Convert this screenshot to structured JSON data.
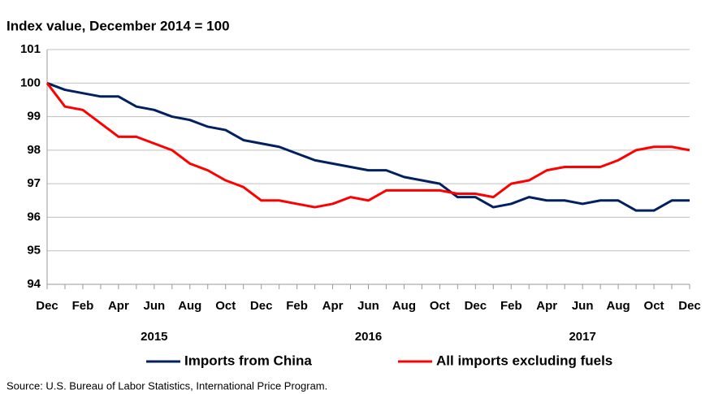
{
  "chart_data": {
    "type": "line",
    "title": "Index value, December 2014 = 100",
    "categories": [
      "Dec",
      null,
      "Feb",
      null,
      "Apr",
      null,
      "Jun",
      null,
      "Aug",
      null,
      "Oct",
      null,
      "Dec",
      null,
      "Feb",
      null,
      "Apr",
      null,
      "Jun",
      null,
      "Aug",
      null,
      "Oct",
      null,
      "Dec",
      null,
      "Feb",
      null,
      "Apr",
      null,
      "Jun",
      null,
      "Aug",
      null,
      "Oct",
      null,
      "Dec"
    ],
    "year_labels": [
      "2015",
      "2016",
      "2017"
    ],
    "series": [
      {
        "name": "Imports from China",
        "color": "#002060",
        "values": [
          100,
          99.8,
          99.7,
          99.6,
          99.6,
          99.3,
          99.2,
          99.0,
          98.9,
          98.7,
          98.6,
          98.3,
          98.2,
          98.1,
          97.9,
          97.7,
          97.6,
          97.5,
          97.4,
          97.4,
          97.2,
          97.1,
          97.0,
          96.6,
          96.6,
          96.3,
          96.4,
          96.6,
          96.5,
          96.5,
          96.4,
          96.5,
          96.5,
          96.2,
          96.2,
          96.5,
          96.5
        ]
      },
      {
        "name": "All imports excluding fuels",
        "color": "#ff0000",
        "values": [
          100,
          99.3,
          99.2,
          98.8,
          98.4,
          98.4,
          98.2,
          98.0,
          97.6,
          97.4,
          97.1,
          96.9,
          96.5,
          96.5,
          96.4,
          96.3,
          96.4,
          96.6,
          96.5,
          96.8,
          96.8,
          96.8,
          96.8,
          96.7,
          96.7,
          96.6,
          97.0,
          97.1,
          97.4,
          97.5,
          97.5,
          97.5,
          97.7,
          98.0,
          98.1,
          98.1,
          98.0
        ]
      }
    ],
    "ylim": [
      94,
      101
    ],
    "yticks": [
      94,
      95,
      96,
      97,
      98,
      99,
      100,
      101
    ],
    "grid": true,
    "legend": "bottom",
    "source": "Source: U.S. Bureau of Labor Statistics, International Price Program."
  }
}
